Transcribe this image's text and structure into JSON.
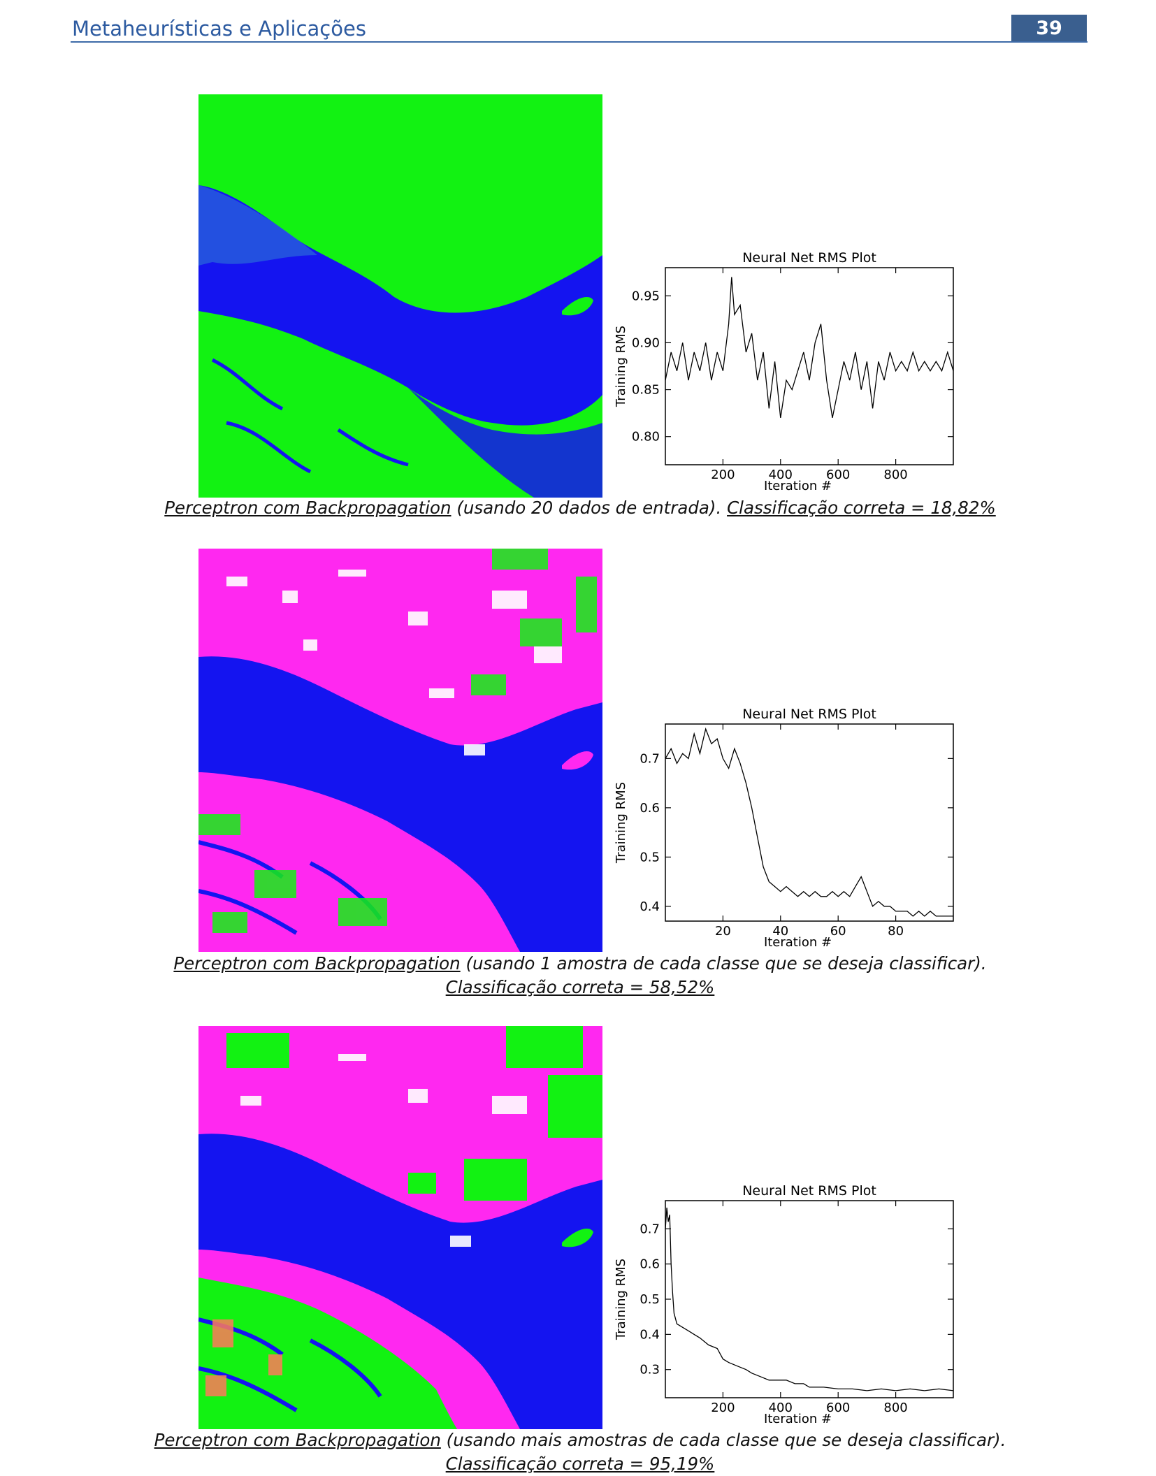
{
  "header": {
    "title": "Metaheurísticas e Aplicações",
    "page_number": "39"
  },
  "figures": [
    {
      "classes_shown": [
        "green",
        "blue",
        "magenta"
      ],
      "caption": {
        "method": "Perceptron com Backpropagation",
        "detail": " (usando 20 dados de entrada). ",
        "result": "Classificação correta = 18,82%",
        "second_line": ""
      }
    },
    {
      "classes_shown": [
        "magenta",
        "blue",
        "green",
        "white"
      ],
      "caption": {
        "method": "Perceptron com Backpropagation",
        "detail": " (usando 1 amostra de cada classe que se deseja classificar).",
        "result": "",
        "second_line": "Classificação correta = 58,52%"
      }
    },
    {
      "classes_shown": [
        "magenta",
        "blue",
        "green",
        "white",
        "orange"
      ],
      "caption": {
        "method": "Perceptron com Backpropagation",
        "detail": " (usando mais amostras de cada classe que se deseja classificar).",
        "result": "",
        "second_line": "Classificação correta = 95,19%"
      }
    }
  ],
  "chart_data": [
    {
      "type": "line",
      "title": "Neural Net RMS Plot",
      "xlabel": "Iteration #",
      "ylabel": "Training RMS",
      "xlim": [
        0,
        1000
      ],
      "ylim": [
        0.77,
        0.98
      ],
      "xticks": [
        200,
        400,
        600,
        800
      ],
      "yticks": [
        0.8,
        0.85,
        0.9,
        0.95
      ],
      "ytick_labels": [
        "0.80",
        "0.85",
        "0.90",
        "0.95"
      ],
      "series": [
        {
          "x": [
            0,
            20,
            40,
            60,
            80,
            100,
            120,
            140,
            160,
            180,
            200,
            220,
            230,
            240,
            260,
            280,
            300,
            320,
            340,
            360,
            380,
            400,
            420,
            440,
            460,
            480,
            500,
            520,
            540,
            560,
            580,
            600,
            620,
            640,
            660,
            680,
            700,
            720,
            740,
            760,
            780,
            800,
            820,
            840,
            860,
            880,
            900,
            920,
            940,
            960,
            980,
            1000
          ],
          "y": [
            0.86,
            0.89,
            0.87,
            0.9,
            0.86,
            0.89,
            0.87,
            0.9,
            0.86,
            0.89,
            0.87,
            0.92,
            0.97,
            0.93,
            0.94,
            0.89,
            0.91,
            0.86,
            0.89,
            0.83,
            0.88,
            0.82,
            0.86,
            0.85,
            0.87,
            0.89,
            0.86,
            0.9,
            0.92,
            0.86,
            0.82,
            0.85,
            0.88,
            0.86,
            0.89,
            0.85,
            0.88,
            0.83,
            0.88,
            0.86,
            0.89,
            0.87,
            0.88,
            0.87,
            0.89,
            0.87,
            0.88,
            0.87,
            0.88,
            0.87,
            0.89,
            0.87
          ]
        }
      ]
    },
    {
      "type": "line",
      "title": "Neural Net RMS Plot",
      "xlabel": "Iteration #",
      "ylabel": "Training RMS",
      "xlim": [
        0,
        100
      ],
      "ylim": [
        0.37,
        0.77
      ],
      "xticks": [
        20,
        40,
        60,
        80
      ],
      "yticks": [
        0.4,
        0.5,
        0.6,
        0.7
      ],
      "ytick_labels": [
        "0.4",
        "0.5",
        "0.6",
        "0.7"
      ],
      "series": [
        {
          "x": [
            0,
            2,
            4,
            6,
            8,
            10,
            12,
            14,
            16,
            18,
            20,
            22,
            24,
            26,
            28,
            30,
            32,
            34,
            36,
            38,
            40,
            42,
            44,
            46,
            48,
            50,
            52,
            54,
            56,
            58,
            60,
            62,
            64,
            66,
            68,
            70,
            72,
            74,
            76,
            78,
            80,
            82,
            84,
            86,
            88,
            90,
            92,
            94,
            96,
            98,
            100
          ],
          "y": [
            0.7,
            0.72,
            0.69,
            0.71,
            0.7,
            0.75,
            0.71,
            0.76,
            0.73,
            0.74,
            0.7,
            0.68,
            0.72,
            0.69,
            0.65,
            0.6,
            0.54,
            0.48,
            0.45,
            0.44,
            0.43,
            0.44,
            0.43,
            0.42,
            0.43,
            0.42,
            0.43,
            0.42,
            0.42,
            0.43,
            0.42,
            0.43,
            0.42,
            0.44,
            0.46,
            0.43,
            0.4,
            0.41,
            0.4,
            0.4,
            0.39,
            0.39,
            0.39,
            0.38,
            0.39,
            0.38,
            0.39,
            0.38,
            0.38,
            0.38,
            0.38
          ]
        }
      ]
    },
    {
      "type": "line",
      "title": "Neural Net RMS Plot",
      "xlabel": "Iteration #",
      "ylabel": "Training RMS",
      "xlim": [
        0,
        1000
      ],
      "ylim": [
        0.22,
        0.78
      ],
      "xticks": [
        200,
        400,
        600,
        800
      ],
      "yticks": [
        0.3,
        0.4,
        0.5,
        0.6,
        0.7
      ],
      "ytick_labels": [
        "0.3",
        "0.4",
        "0.5",
        "0.6",
        "0.7"
      ],
      "series": [
        {
          "x": [
            0,
            5,
            10,
            15,
            20,
            25,
            30,
            40,
            60,
            80,
            100,
            120,
            150,
            180,
            200,
            220,
            250,
            280,
            300,
            330,
            360,
            400,
            420,
            450,
            480,
            500,
            550,
            600,
            650,
            700,
            750,
            800,
            850,
            900,
            950,
            1000
          ],
          "y": [
            0.7,
            0.76,
            0.72,
            0.74,
            0.6,
            0.52,
            0.46,
            0.43,
            0.42,
            0.41,
            0.4,
            0.39,
            0.37,
            0.36,
            0.33,
            0.32,
            0.31,
            0.3,
            0.29,
            0.28,
            0.27,
            0.27,
            0.27,
            0.26,
            0.26,
            0.25,
            0.25,
            0.245,
            0.245,
            0.24,
            0.245,
            0.24,
            0.245,
            0.24,
            0.245,
            0.24
          ]
        }
      ]
    }
  ]
}
